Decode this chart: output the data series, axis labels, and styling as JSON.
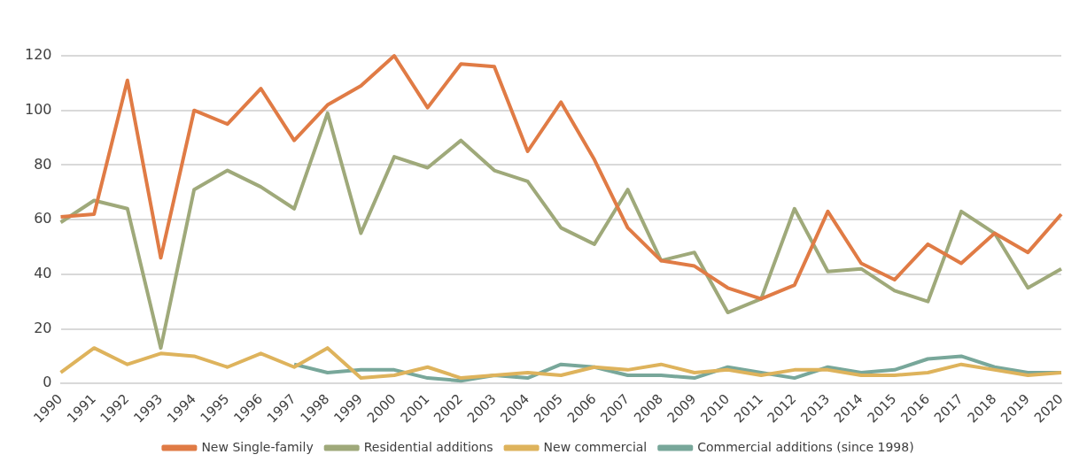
{
  "chart_data": {
    "type": "line",
    "categories": [
      "1990",
      "1991",
      "1992",
      "1993",
      "1994",
      "1995",
      "1996",
      "1997",
      "1998",
      "1999",
      "2000",
      "2001",
      "2002",
      "2003",
      "2004",
      "2005",
      "2006",
      "2007",
      "2008",
      "2009",
      "2010",
      "2011",
      "2012",
      "2013",
      "2014",
      "2015",
      "2016",
      "2017",
      "2018",
      "2019",
      "2020"
    ],
    "series": [
      {
        "name": "New Single-family",
        "color": "#e07b45",
        "values": [
          61,
          62,
          111,
          46,
          100,
          95,
          108,
          89,
          102,
          109,
          120,
          101,
          117,
          116,
          85,
          103,
          82,
          57,
          45,
          43,
          35,
          31,
          36,
          63,
          44,
          38,
          51,
          44,
          55,
          48,
          62
        ]
      },
      {
        "name": "Residential additions",
        "color": "#9fa97a",
        "values": [
          59,
          67,
          64,
          13,
          71,
          78,
          72,
          64,
          99,
          55,
          83,
          79,
          89,
          78,
          74,
          57,
          51,
          71,
          45,
          48,
          26,
          31,
          64,
          41,
          42,
          34,
          30,
          63,
          55,
          35,
          42
        ]
      },
      {
        "name": "New commercial",
        "color": "#deb35c",
        "values": [
          4,
          13,
          7,
          11,
          10,
          6,
          11,
          6,
          13,
          2,
          3,
          6,
          2,
          3,
          4,
          3,
          6,
          5,
          7,
          4,
          5,
          3,
          5,
          5,
          3,
          3,
          4,
          7,
          5,
          3,
          4
        ]
      },
      {
        "name": "Commercial additions (since 1998)",
        "color": "#78a79a",
        "values": [
          null,
          null,
          null,
          null,
          null,
          null,
          null,
          7,
          4,
          5,
          5,
          2,
          1,
          3,
          2,
          7,
          6,
          3,
          3,
          2,
          6,
          4,
          2,
          6,
          4,
          5,
          9,
          10,
          6,
          4,
          4
        ]
      }
    ],
    "ylim": [
      0,
      120
    ],
    "yticks": [
      0,
      20,
      40,
      60,
      80,
      100,
      120
    ],
    "grid": "y",
    "legend": "bottom",
    "marker": "none",
    "line_style": "solid"
  }
}
